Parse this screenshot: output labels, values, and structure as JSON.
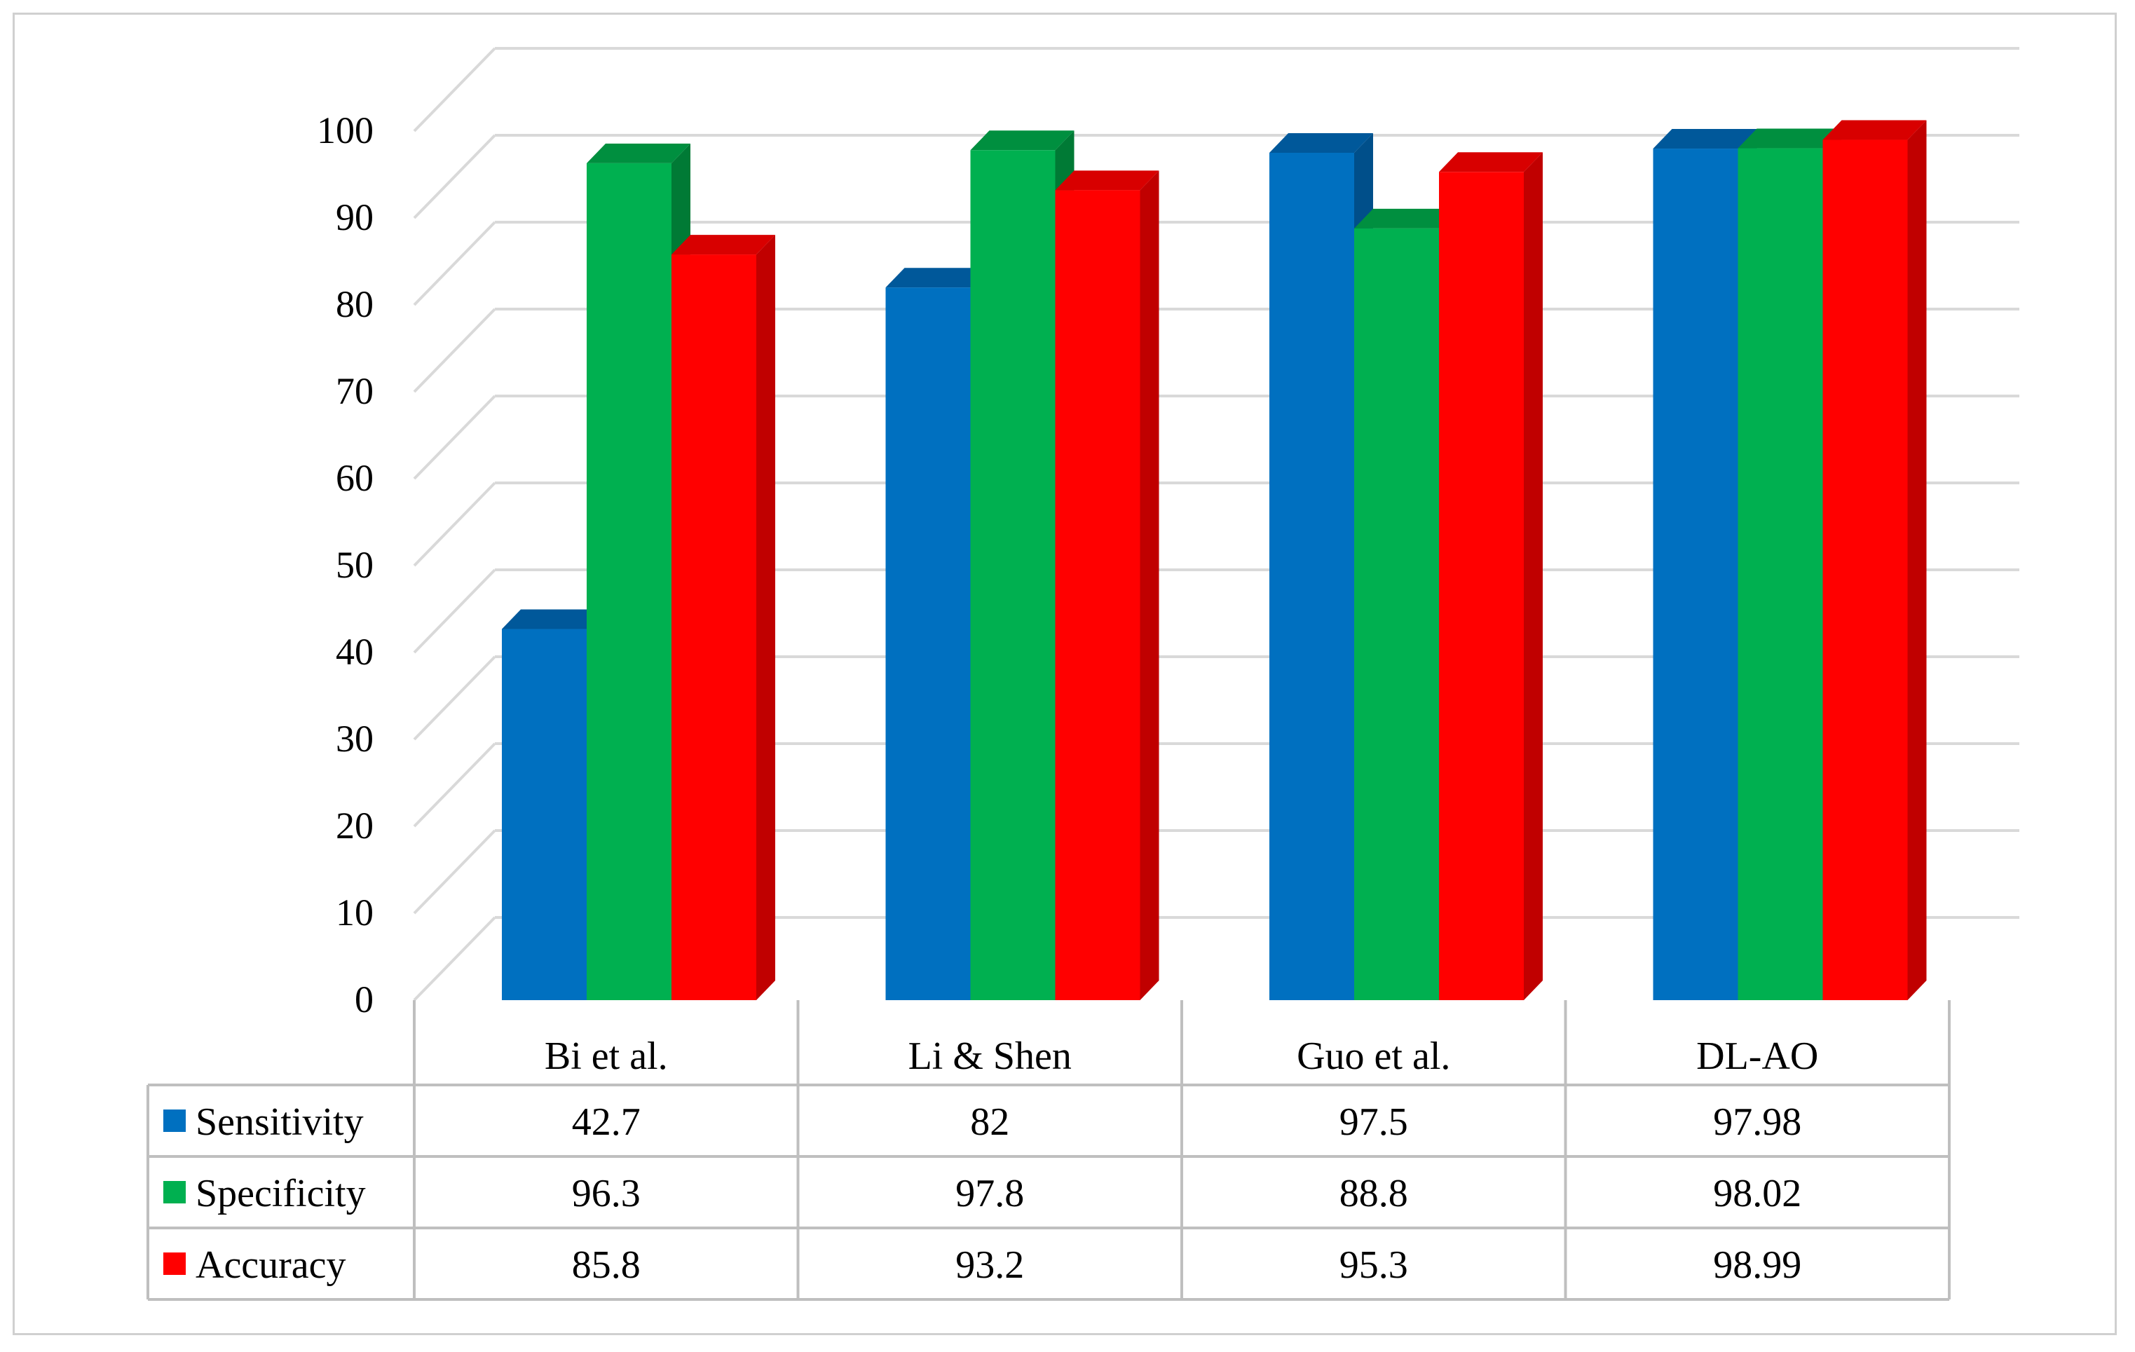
{
  "chart_data": {
    "type": "bar",
    "style": "3d-clustered-column-with-data-table",
    "title": "",
    "xlabel": "",
    "ylabel": "",
    "ylim": [
      0,
      100
    ],
    "ytick_step": 10,
    "yticks": [
      "0",
      "10",
      "20",
      "30",
      "40",
      "50",
      "60",
      "70",
      "80",
      "90",
      "100"
    ],
    "grid": true,
    "legend": "data-table-left",
    "categories": [
      "Bi et al.",
      "Li & Shen",
      "Guo et al.",
      "DL-AO"
    ],
    "series": [
      {
        "name": "Sensitivity",
        "values": [
          42.7,
          82,
          97.5,
          97.98
        ],
        "labels": [
          "42.7",
          "82",
          "97.5",
          "97.98"
        ],
        "color": "#0070c0",
        "top_color": "#00589a",
        "side_color": "#004f8a"
      },
      {
        "name": "Specificity",
        "values": [
          96.3,
          97.8,
          88.8,
          98.02
        ],
        "labels": [
          "96.3",
          "97.8",
          "88.8",
          "98.02"
        ],
        "color": "#00b050",
        "top_color": "#008f3f",
        "side_color": "#007a35"
      },
      {
        "name": "Accuracy",
        "values": [
          85.8,
          93.2,
          95.3,
          98.99
        ],
        "labels": [
          "85.8",
          "93.2",
          "95.3",
          "98.99"
        ],
        "color": "#ff0000",
        "top_color": "#d80000",
        "side_color": "#c00000"
      }
    ]
  },
  "colors": {
    "grid": "#d9d9d9",
    "table_border": "#bfbfbf",
    "frame_border": "#d0d0d0"
  }
}
